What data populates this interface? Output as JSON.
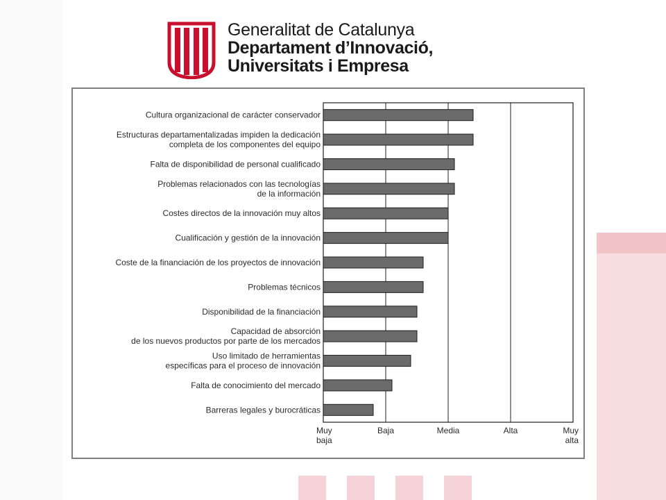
{
  "header": {
    "line1": "Generalitat de Catalunya",
    "line2": "Departament d’Innovació,",
    "line3": "Universitats i Empresa"
  },
  "colors": {
    "bar_fill": "#6b6b6b",
    "bar_stroke": "#1e1e1e",
    "logo_red": "#c8102e",
    "watermark_red": "#f4c9cf"
  },
  "chart_data": {
    "type": "bar",
    "orientation": "horizontal",
    "title": "",
    "xlabel": "",
    "ylabel": "",
    "xlim": [
      0,
      4
    ],
    "grid": "vertical lines at each tick",
    "legend": "none",
    "tick_labels": [
      [
        "Muy",
        "baja"
      ],
      [
        "Baja"
      ],
      [
        "Media"
      ],
      [
        "Alta"
      ],
      [
        "Muy",
        "alta"
      ]
    ],
    "categories": [
      [
        "Cultura organizacional de carácter conservador"
      ],
      [
        "Estructuras departamentalizadas impiden la dedicación",
        "completa de los componentes del equipo"
      ],
      [
        "Falta de disponibilidad de personal cualificado"
      ],
      [
        "Problemas relacionados con las tecnologías",
        "de la información"
      ],
      [
        "Costes directos de la innovación muy altos"
      ],
      [
        "Cualificación y gestión de la innovación"
      ],
      [
        "Coste de la financiación de los proyectos de innovación"
      ],
      [
        "Problemas  técnicos"
      ],
      [
        "Disponibilidad de la financiación"
      ],
      [
        "Capacidad de absorción",
        "de los nuevos productos por parte de los mercados"
      ],
      [
        "Uso limitado de herramientas",
        "específicas para el proceso de innovación"
      ],
      [
        "Falta de conocimiento del mercado"
      ],
      [
        "Barreras legales y burocráticas"
      ]
    ],
    "values": [
      2.4,
      2.4,
      2.1,
      2.1,
      2.0,
      2.0,
      1.6,
      1.6,
      1.5,
      1.5,
      1.4,
      1.1,
      0.8
    ]
  }
}
